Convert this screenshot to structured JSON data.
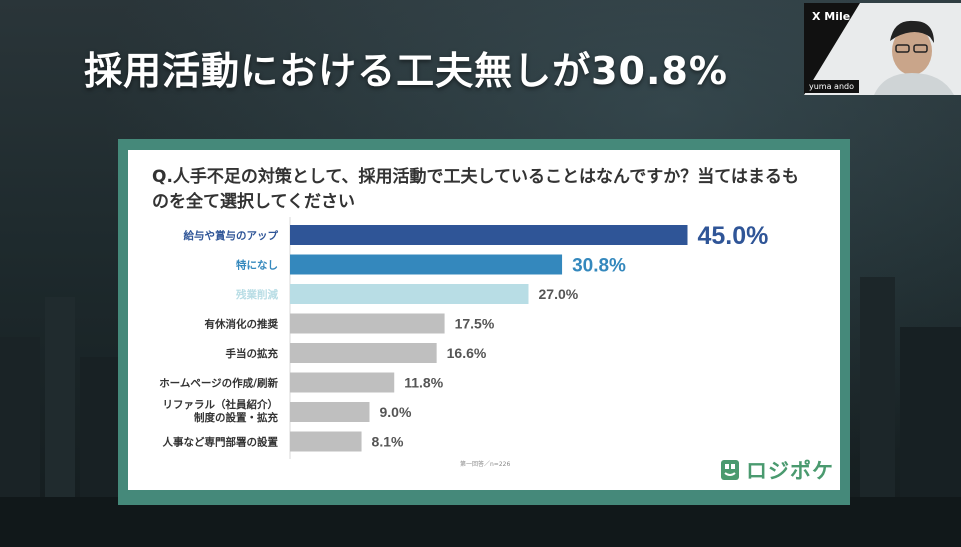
{
  "slide": {
    "title": "採用活動における工夫無しが30.8%"
  },
  "webcam": {
    "logo": "X Mile",
    "name_tag": "yuma ando"
  },
  "question": "Q.人手不足の対策として、採用活動で工夫していることはなんですか？当てはまるものを全て選択してください",
  "colors": {
    "panel": "#45897a",
    "bar_top": "#2f5597",
    "bar_second": "#3488bd",
    "bar_third": "#b8dde5",
    "bar_gray": "#bfbfbf",
    "label_gray": "#333333",
    "brand": "#4a9a6f"
  },
  "chart_data": {
    "type": "bar",
    "orientation": "horizontal",
    "title": "Q.人手不足の対策として、採用活動で工夫していることはなんですか？当てはまるものを全て選択してください",
    "unit": "%",
    "xlim": [
      0,
      60
    ],
    "categories": [
      "給与や賞与のアップ",
      "特になし",
      "残業削減",
      "有休消化の推奨",
      "手当の拡充",
      "ホームページの作成/刷新",
      "リファラル（社員紹介）制度の設置・拡充",
      "人事など専門部署の設置"
    ],
    "category_lines": [
      [
        "給与や賞与のアップ"
      ],
      [
        "特になし"
      ],
      [
        "残業削減"
      ],
      [
        "有休消化の推奨"
      ],
      [
        "手当の拡充"
      ],
      [
        "ホームページの作成/刷新"
      ],
      [
        "リファラル（社員紹介）",
        "制度の設置・拡充"
      ],
      [
        "人事など専門部署の設置"
      ]
    ],
    "values": [
      45.0,
      30.8,
      27.0,
      17.5,
      16.6,
      11.8,
      9.0,
      8.1
    ],
    "value_labels": [
      "45.0%",
      "30.8%",
      "27.0%",
      "17.5%",
      "16.6%",
      "11.8%",
      "9.0%",
      "8.1%"
    ],
    "note": "第一回答／n=226"
  },
  "brand": {
    "name": "ロジポケ"
  }
}
